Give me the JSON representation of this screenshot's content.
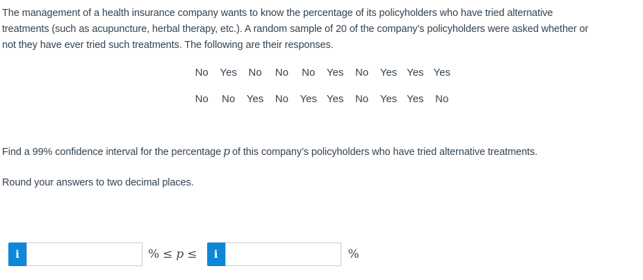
{
  "problem": {
    "intro_lines": [
      "The management of a health insurance company wants to know the percentage of its policyholders who have tried alternative",
      "treatments (such as acupuncture, herbal therapy, etc.). A random sample of 20 of the company’s policyholders were asked whether or",
      "not they have ever tried such treatments. The following are their responses."
    ],
    "responses": {
      "row1": [
        "No",
        "Yes",
        "No",
        "No",
        "No",
        "Yes",
        "No",
        "Yes",
        "Yes",
        "Yes"
      ],
      "row2": [
        "No",
        "No",
        "Yes",
        "No",
        "Yes",
        "Yes",
        "No",
        "Yes",
        "Yes",
        "No"
      ]
    },
    "question": {
      "before": "Find a 99% confidence interval for the percentage",
      "p_symbol": "p",
      "after": "of this company’s policyholders who have tried alternative treatments."
    },
    "instruction": "Round your answers to two decimal places."
  },
  "answer": {
    "info_icon": "i",
    "lower_value": "",
    "upper_value": "",
    "percent": "%",
    "leq": "≤",
    "p_symbol": "p",
    "suffix_percent": "%"
  },
  "colors": {
    "accent_blue": "#0e87d9",
    "text": "#33424f",
    "input_border": "#c9cdd1"
  }
}
